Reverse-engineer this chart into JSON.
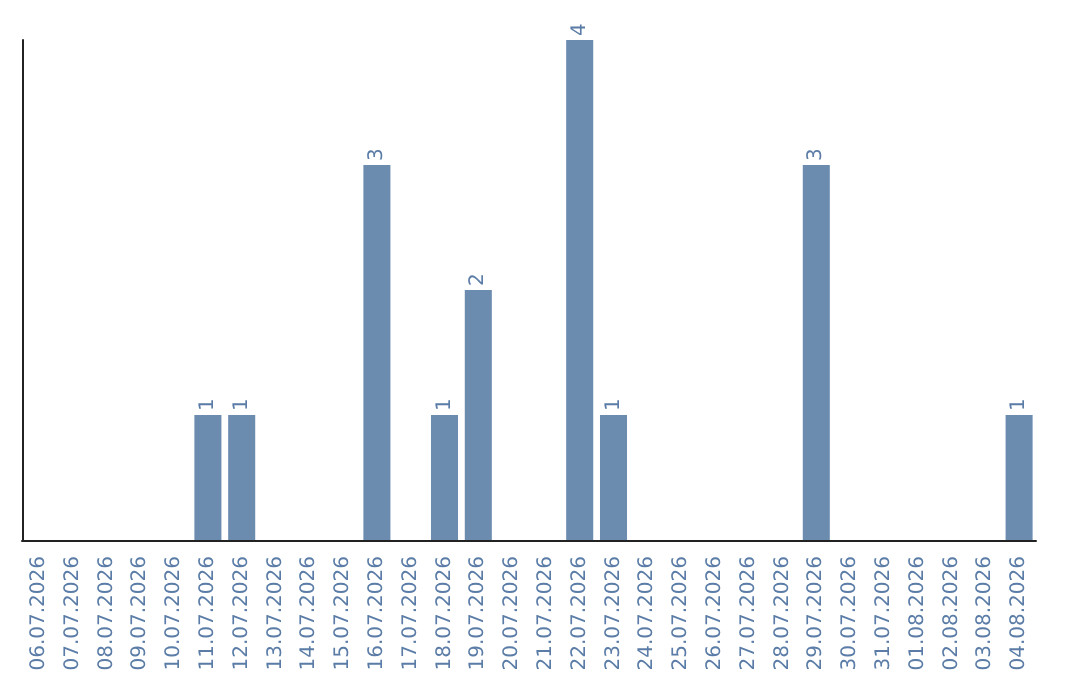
{
  "chart_data": {
    "type": "bar",
    "categories": [
      "06.07.2026",
      "07.07.2026",
      "08.07.2026",
      "09.07.2026",
      "10.07.2026",
      "11.07.2026",
      "12.07.2026",
      "13.07.2026",
      "14.07.2026",
      "15.07.2026",
      "16.07.2026",
      "17.07.2026",
      "18.07.2026",
      "19.07.2026",
      "20.07.2026",
      "21.07.2026",
      "22.07.2026",
      "23.07.2026",
      "24.07.2026",
      "25.07.2026",
      "26.07.2026",
      "27.07.2026",
      "28.07.2026",
      "29.07.2026",
      "30.07.2026",
      "31.07.2026",
      "01.08.2026",
      "02.08.2026",
      "03.08.2026",
      "04.08.2026"
    ],
    "values": [
      0,
      0,
      0,
      0,
      0,
      1,
      1,
      0,
      0,
      0,
      3,
      0,
      1,
      2,
      0,
      0,
      4,
      1,
      0,
      0,
      0,
      0,
      0,
      3,
      0,
      0,
      0,
      0,
      0,
      1
    ],
    "value_labels": [
      null,
      null,
      null,
      null,
      null,
      "1",
      "1",
      null,
      null,
      null,
      "3",
      null,
      "1",
      "2",
      null,
      null,
      "4",
      "1",
      null,
      null,
      null,
      null,
      null,
      "3",
      null,
      null,
      null,
      null,
      null,
      "1"
    ],
    "color": "#6b8cae",
    "tick_labels": "x"
  }
}
